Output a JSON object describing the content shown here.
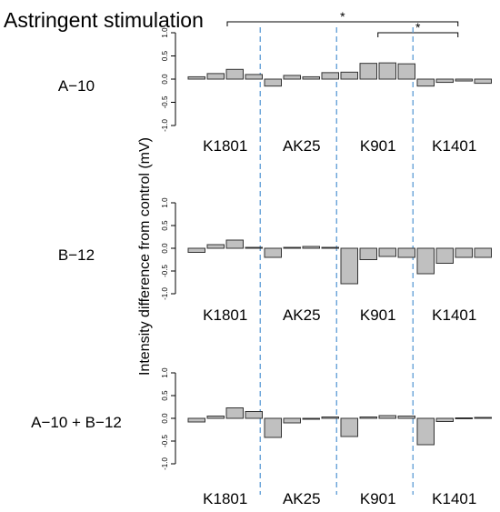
{
  "title": "Astringent stimulation",
  "ylabel": "Intensity difference from control (mV)",
  "colors": {
    "bar_fill": "#c0c0c0",
    "bar_stroke": "#333333",
    "divider": "#5b9bd5",
    "axis": "#000000"
  },
  "significance": [
    {
      "from_group": "K1801",
      "to_group": "K1401",
      "label": "*"
    },
    {
      "from_group": "K901",
      "to_group": "K1401",
      "label": "*"
    }
  ],
  "chart_data": {
    "type": "bar",
    "groups": [
      "K1801",
      "AK25",
      "K901",
      "K1401"
    ],
    "bars_per_group": 4,
    "ylim": [
      -1.0,
      1.0
    ],
    "yticks": [
      "1.0",
      "0.5",
      "0.0",
      "-0.5",
      "-1.0"
    ],
    "grid": false,
    "panels": [
      {
        "label": "A−10",
        "values": [
          0.05,
          0.12,
          0.21,
          0.1,
          -0.15,
          0.08,
          0.05,
          0.14,
          0.15,
          0.34,
          0.35,
          0.33,
          -0.15,
          -0.07,
          -0.04,
          -0.09
        ]
      },
      {
        "label": "B−12",
        "values": [
          -0.09,
          0.08,
          0.18,
          0.02,
          -0.2,
          0.02,
          0.04,
          0.02,
          -0.78,
          -0.25,
          -0.18,
          -0.2,
          -0.56,
          -0.33,
          -0.2,
          -0.2
        ]
      },
      {
        "label": "A−10 + B−12",
        "values": [
          -0.08,
          0.05,
          0.23,
          0.15,
          -0.42,
          -0.1,
          0.0,
          0.03,
          -0.4,
          0.03,
          0.06,
          0.05,
          -0.58,
          -0.07,
          0.01,
          0.02
        ]
      }
    ]
  }
}
